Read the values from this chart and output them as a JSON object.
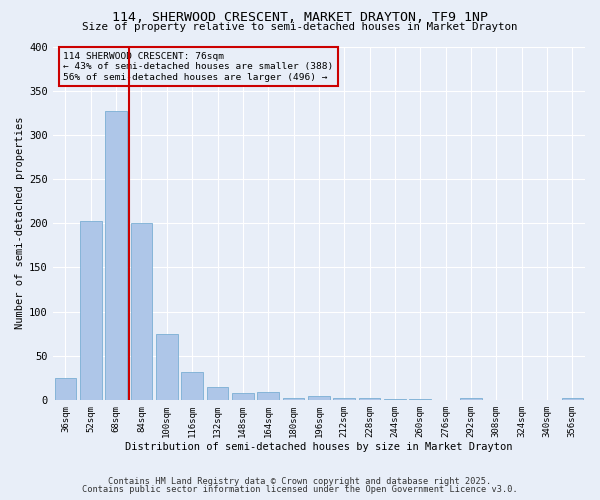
{
  "title": "114, SHERWOOD CRESCENT, MARKET DRAYTON, TF9 1NP",
  "subtitle": "Size of property relative to semi-detached houses in Market Drayton",
  "xlabel": "Distribution of semi-detached houses by size in Market Drayton",
  "ylabel": "Number of semi-detached properties",
  "footer1": "Contains HM Land Registry data © Crown copyright and database right 2025.",
  "footer2": "Contains public sector information licensed under the Open Government Licence v3.0.",
  "categories": [
    "36sqm",
    "52sqm",
    "68sqm",
    "84sqm",
    "100sqm",
    "116sqm",
    "132sqm",
    "148sqm",
    "164sqm",
    "180sqm",
    "196sqm",
    "212sqm",
    "228sqm",
    "244sqm",
    "260sqm",
    "276sqm",
    "292sqm",
    "308sqm",
    "324sqm",
    "340sqm",
    "356sqm"
  ],
  "values": [
    25,
    203,
    327,
    200,
    74,
    32,
    14,
    8,
    9,
    2,
    4,
    2,
    2,
    1,
    1,
    0,
    2,
    0,
    0,
    0,
    2
  ],
  "bar_color": "#aec6e8",
  "bar_edge_color": "#7aafd4",
  "background_color": "#e8eef8",
  "grid_color": "#ffffff",
  "vline_x": 2.5,
  "vline_color": "#cc0000",
  "annotation_title": "114 SHERWOOD CRESCENT: 76sqm",
  "annotation_line1": "← 43% of semi-detached houses are smaller (388)",
  "annotation_line2": "56% of semi-detached houses are larger (496) →",
  "annotation_box_color": "#cc0000",
  "ylim": [
    0,
    400
  ],
  "yticks": [
    0,
    50,
    100,
    150,
    200,
    250,
    300,
    350,
    400
  ]
}
